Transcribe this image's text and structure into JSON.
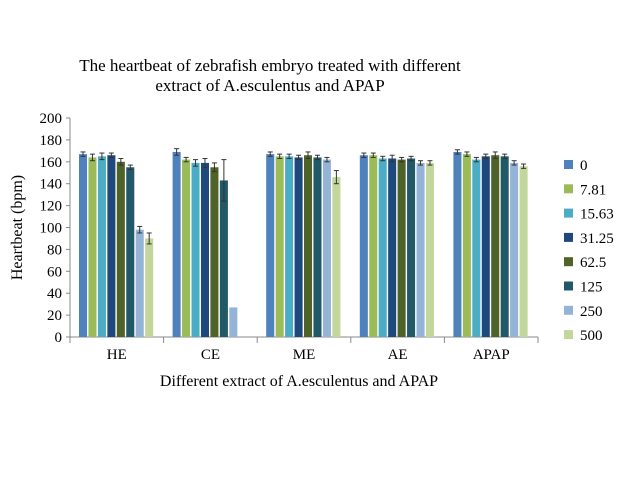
{
  "chart_data": {
    "type": "bar",
    "title_line1": "The heartbeat of zebrafish embryo treated with different",
    "title_line2": "extract of A.esculentus and APAP",
    "xlabel": "Different extract of A.esculentus and APAP",
    "ylabel": "Heartbeat (bpm)",
    "ylim": [
      0,
      200
    ],
    "yticks": [
      0,
      20,
      40,
      60,
      80,
      100,
      120,
      140,
      160,
      180,
      200
    ],
    "categories": [
      "HE",
      "CE",
      "ME",
      "AE",
      "APAP"
    ],
    "legend_position": "right",
    "grid": false,
    "series": [
      {
        "name": "0",
        "color": "#4F81BD",
        "values": [
          167,
          169,
          167,
          166,
          169
        ],
        "errors": [
          2,
          3,
          2,
          2,
          2
        ]
      },
      {
        "name": "7.81",
        "color": "#9BBB59",
        "values": [
          164,
          162,
          165,
          166,
          167
        ],
        "errors": [
          3,
          2,
          2,
          2,
          2
        ]
      },
      {
        "name": "15.63",
        "color": "#4BACC6",
        "values": [
          165,
          159,
          165,
          163,
          162
        ],
        "errors": [
          3,
          3,
          2,
          2,
          2
        ]
      },
      {
        "name": "31.25",
        "color": "#1F497D",
        "values": [
          166,
          159,
          164,
          163,
          165
        ],
        "errors": [
          2,
          4,
          2,
          3,
          2
        ]
      },
      {
        "name": "62.5",
        "color": "#4F6228",
        "values": [
          160,
          155,
          166,
          162,
          166
        ],
        "errors": [
          3,
          4,
          3,
          2,
          3
        ]
      },
      {
        "name": "125",
        "color": "#215968",
        "values": [
          155,
          143,
          164,
          163,
          165
        ],
        "errors": [
          2,
          19,
          2,
          2,
          2
        ]
      },
      {
        "name": "250",
        "color": "#95B3D7",
        "values": [
          98,
          27,
          162,
          159,
          159
        ],
        "errors": [
          3,
          0,
          2,
          2,
          2
        ]
      },
      {
        "name": "500",
        "color": "#C3D69B",
        "values": [
          90,
          0,
          146,
          159,
          156
        ],
        "errors": [
          5,
          0,
          6,
          2,
          2
        ]
      }
    ]
  }
}
